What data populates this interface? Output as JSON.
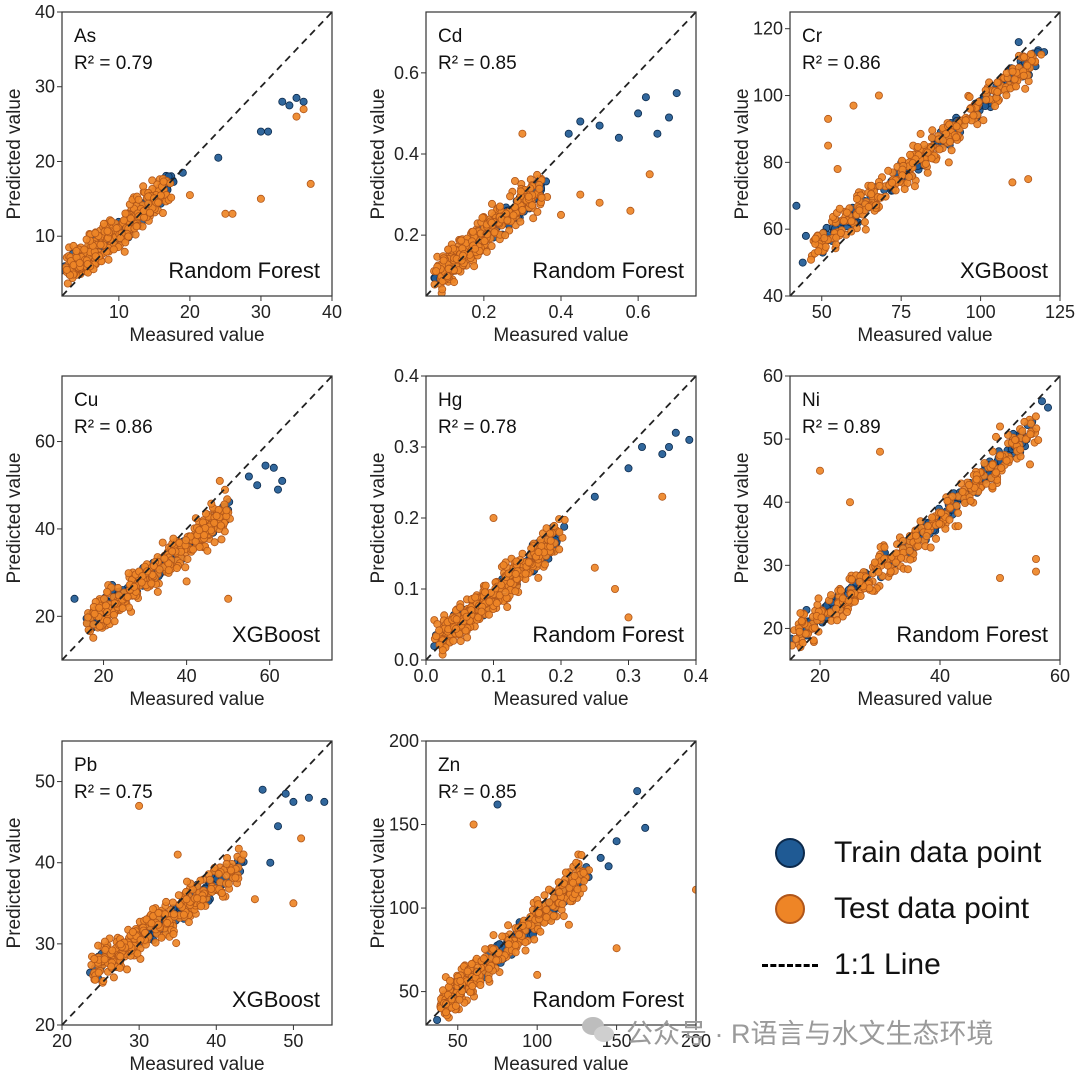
{
  "colors": {
    "train": "#1f5a94",
    "train_edge": "#0c2a4c",
    "test": "#ee8526",
    "test_edge": "#b0561a",
    "line": "#222222"
  },
  "legend": {
    "train": "Train data point",
    "test": "Test data point",
    "line": "1:1 Line"
  },
  "watermark": {
    "text": "公众号 · R语言与水文生态环境",
    "icon": "wechat-icon"
  },
  "chart_data": [
    {
      "type": "scatter",
      "element": "As",
      "r2_label": "R² = 0.79",
      "model": "Random Forest",
      "xlabel": "Measured value",
      "ylabel": "Predicted value",
      "xlim": [
        2,
        40
      ],
      "ylim": [
        2,
        40
      ],
      "xticks": [
        "10",
        "20",
        "30",
        "40"
      ],
      "yticks": [
        "10",
        "20",
        "30",
        "40"
      ],
      "trend": [
        [
          3,
          5.5
        ],
        [
          10,
          10.5
        ],
        [
          17,
          16.5
        ]
      ],
      "train_extremes": [
        [
          4,
          6
        ],
        [
          17,
          18
        ],
        [
          19,
          18.5
        ],
        [
          24,
          20.5
        ],
        [
          30,
          24
        ],
        [
          31,
          24
        ],
        [
          33,
          28
        ],
        [
          34,
          27.5
        ],
        [
          35,
          28.5
        ],
        [
          36,
          28
        ]
      ],
      "test_extremes": [
        [
          25,
          13
        ],
        [
          26,
          13
        ],
        [
          30,
          15
        ],
        [
          35,
          26
        ],
        [
          36,
          27
        ],
        [
          37,
          17
        ],
        [
          20,
          15.5
        ]
      ]
    },
    {
      "type": "scatter",
      "element": "Cd",
      "r2_label": "R² = 0.85",
      "model": "Random Forest",
      "xlabel": "Measured value",
      "ylabel": "Predicted value",
      "xlim": [
        0.05,
        0.75
      ],
      "ylim": [
        0.05,
        0.75
      ],
      "xticks": [
        "0.2",
        "0.4",
        "0.6"
      ],
      "yticks": [
        "0.2",
        "0.4",
        "0.6"
      ],
      "trend": [
        [
          0.08,
          0.1
        ],
        [
          0.2,
          0.2
        ],
        [
          0.35,
          0.32
        ]
      ],
      "train_extremes": [
        [
          0.42,
          0.45
        ],
        [
          0.45,
          0.48
        ],
        [
          0.5,
          0.47
        ],
        [
          0.55,
          0.44
        ],
        [
          0.6,
          0.5
        ],
        [
          0.62,
          0.54
        ],
        [
          0.65,
          0.45
        ],
        [
          0.68,
          0.49
        ],
        [
          0.7,
          0.55
        ]
      ],
      "test_extremes": [
        [
          0.4,
          0.25
        ],
        [
          0.45,
          0.3
        ],
        [
          0.5,
          0.28
        ],
        [
          0.58,
          0.26
        ],
        [
          0.63,
          0.35
        ],
        [
          0.3,
          0.45
        ]
      ]
    },
    {
      "type": "scatter",
      "element": "Cr",
      "r2_label": "R² = 0.86",
      "model": "XGBoost",
      "xlabel": "Measured value",
      "ylabel": "Predicted value",
      "xlim": [
        40,
        125
      ],
      "ylim": [
        40,
        125
      ],
      "xticks": [
        "50",
        "75",
        "100",
        "125"
      ],
      "yticks": [
        "40",
        "60",
        "80",
        "100",
        "120"
      ],
      "trend": [
        [
          48,
          55
        ],
        [
          80,
          80
        ],
        [
          118,
          112
        ]
      ],
      "train_extremes": [
        [
          42,
          67
        ],
        [
          44,
          50
        ],
        [
          45,
          58
        ],
        [
          112,
          116
        ],
        [
          118,
          113
        ],
        [
          120,
          113
        ]
      ],
      "test_extremes": [
        [
          52,
          93
        ],
        [
          52,
          85
        ],
        [
          55,
          78
        ],
        [
          60,
          97
        ],
        [
          68,
          100
        ],
        [
          110,
          74
        ],
        [
          115,
          75
        ],
        [
          90,
          80
        ]
      ]
    },
    {
      "type": "scatter",
      "element": "Cu",
      "r2_label": "R² = 0.86",
      "model": "XGBoost",
      "xlabel": "Measured value",
      "ylabel": "Predicted value",
      "xlim": [
        10,
        75
      ],
      "ylim": [
        10,
        75
      ],
      "xticks": [
        "20",
        "40",
        "60"
      ],
      "yticks": [
        "20",
        "40",
        "60"
      ],
      "trend": [
        [
          17,
          20
        ],
        [
          32,
          30
        ],
        [
          50,
          44
        ]
      ],
      "train_extremes": [
        [
          13,
          24
        ],
        [
          55,
          52
        ],
        [
          57,
          50
        ],
        [
          59,
          54.5
        ],
        [
          61,
          54
        ],
        [
          62,
          49
        ],
        [
          63,
          51
        ]
      ],
      "test_extremes": [
        [
          48,
          51
        ],
        [
          50,
          24
        ],
        [
          45,
          35
        ],
        [
          40,
          28
        ]
      ]
    },
    {
      "type": "scatter",
      "element": "Hg",
      "r2_label": "R² = 0.78",
      "model": "Random Forest",
      "xlabel": "Measured value",
      "ylabel": "Predicted value",
      "xlim": [
        0,
        0.4
      ],
      "ylim": [
        0,
        0.4
      ],
      "xticks": [
        "0.0",
        "0.1",
        "0.2",
        "0.3",
        "0.4"
      ],
      "yticks": [
        "0.0",
        "0.1",
        "0.2",
        "0.3",
        "0.4"
      ],
      "trend": [
        [
          0.02,
          0.035
        ],
        [
          0.1,
          0.09
        ],
        [
          0.2,
          0.18
        ]
      ],
      "train_extremes": [
        [
          0.25,
          0.23
        ],
        [
          0.3,
          0.27
        ],
        [
          0.32,
          0.3
        ],
        [
          0.35,
          0.29
        ],
        [
          0.36,
          0.3
        ],
        [
          0.37,
          0.32
        ],
        [
          0.39,
          0.31
        ]
      ],
      "test_extremes": [
        [
          0.25,
          0.13
        ],
        [
          0.28,
          0.1
        ],
        [
          0.3,
          0.06
        ],
        [
          0.35,
          0.23
        ],
        [
          0.1,
          0.2
        ]
      ]
    },
    {
      "type": "scatter",
      "element": "Ni",
      "r2_label": "R² = 0.89",
      "model": "Random Forest",
      "xlabel": "Measured value",
      "ylabel": "Predicted value",
      "xlim": [
        15,
        60
      ],
      "ylim": [
        15,
        60
      ],
      "xticks": [
        "20",
        "40",
        "60"
      ],
      "yticks": [
        "20",
        "30",
        "40",
        "50",
        "60"
      ],
      "trend": [
        [
          16,
          19
        ],
        [
          35,
          33
        ],
        [
          56,
          52
        ]
      ],
      "train_extremes": [
        [
          57,
          56
        ],
        [
          58,
          55
        ]
      ],
      "test_extremes": [
        [
          20,
          45
        ],
        [
          25,
          40
        ],
        [
          30,
          48
        ],
        [
          50,
          28
        ],
        [
          56,
          31
        ],
        [
          56,
          29
        ],
        [
          55,
          46
        ],
        [
          50,
          52
        ]
      ]
    },
    {
      "type": "scatter",
      "element": "Pb",
      "r2_label": "R² = 0.75",
      "model": "XGBoost",
      "xlabel": "Measured value",
      "ylabel": "Predicted value",
      "xlim": [
        20,
        55
      ],
      "ylim": [
        20,
        55
      ],
      "xticks": [
        "20",
        "30",
        "40",
        "50"
      ],
      "yticks": [
        "20",
        "30",
        "40",
        "50"
      ],
      "trend": [
        [
          24,
          27
        ],
        [
          33,
          32.5
        ],
        [
          43,
          40
        ]
      ],
      "train_extremes": [
        [
          46,
          49
        ],
        [
          49,
          48.5
        ],
        [
          50,
          47.5
        ],
        [
          52,
          48
        ],
        [
          54,
          47.5
        ],
        [
          48,
          44.5
        ],
        [
          47,
          40
        ]
      ],
      "test_extremes": [
        [
          30,
          47
        ],
        [
          35,
          41
        ],
        [
          45,
          35.5
        ],
        [
          50,
          35
        ],
        [
          51,
          43
        ]
      ]
    },
    {
      "type": "scatter",
      "element": "Zn",
      "r2_label": "R² = 0.85",
      "model": "Random Forest",
      "xlabel": "Measured value",
      "ylabel": "Predicted value",
      "xlim": [
        30,
        200
      ],
      "ylim": [
        30,
        200
      ],
      "xticks": [
        "50",
        "100",
        "150",
        "200"
      ],
      "yticks": [
        "50",
        "100",
        "150",
        "200"
      ],
      "trend": [
        [
          40,
          42
        ],
        [
          85,
          80
        ],
        [
          130,
          120
        ]
      ],
      "train_extremes": [
        [
          75,
          162
        ],
        [
          150,
          140
        ],
        [
          163,
          170
        ],
        [
          168,
          148
        ],
        [
          140,
          130
        ],
        [
          145,
          125
        ]
      ],
      "test_extremes": [
        [
          60,
          150
        ],
        [
          150,
          76
        ],
        [
          200,
          111
        ],
        [
          120,
          90
        ],
        [
          100,
          60
        ]
      ]
    }
  ]
}
